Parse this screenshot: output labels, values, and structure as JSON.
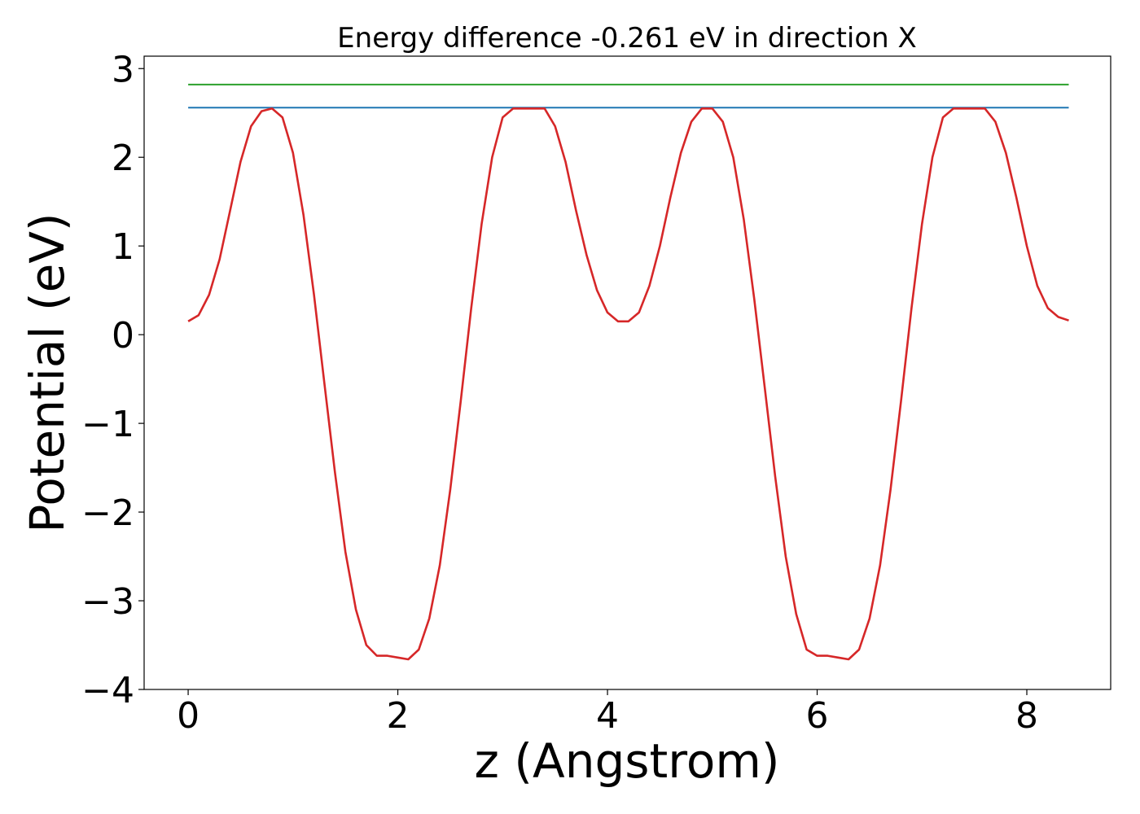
{
  "chart_data": {
    "type": "line",
    "title": "Energy difference -0.261 eV in direction X",
    "xlabel": "z (Angstrom)",
    "ylabel": "Potential (eV)",
    "xlim": [
      -0.42,
      8.8
    ],
    "ylim": [
      -4.0,
      3.14
    ],
    "x_ticks": [
      0,
      2,
      4,
      6,
      8
    ],
    "x_tick_labels": [
      "0",
      "2",
      "4",
      "6",
      "8"
    ],
    "y_ticks": [
      3,
      2,
      1,
      0,
      -1,
      -2,
      -3,
      -4
    ],
    "y_tick_labels": [
      "3",
      "2",
      "1",
      "0",
      "−1",
      "−2",
      "−3",
      "−4"
    ],
    "grid": false,
    "legend": "none",
    "series": [
      {
        "color": "#2ca02c",
        "style": "hline",
        "x": [
          0,
          8.4
        ],
        "y": [
          2.82,
          2.82
        ]
      },
      {
        "color": "#1f77b4",
        "style": "hline",
        "x": [
          0,
          8.4
        ],
        "y": [
          2.56,
          2.56
        ]
      },
      {
        "color": "#d62728",
        "style": "curve",
        "x": [
          0.0,
          0.1,
          0.2,
          0.3,
          0.4,
          0.5,
          0.6,
          0.7,
          0.8,
          0.9,
          1.0,
          1.1,
          1.2,
          1.3,
          1.4,
          1.5,
          1.6,
          1.7,
          1.8,
          1.9,
          2.0,
          2.1,
          2.2,
          2.3,
          2.4,
          2.5,
          2.6,
          2.7,
          2.8,
          2.9,
          3.0,
          3.1,
          3.2,
          3.3,
          3.4,
          3.5,
          3.6,
          3.7,
          3.8,
          3.9,
          4.0,
          4.1,
          4.2,
          4.3,
          4.4,
          4.5,
          4.6,
          4.7,
          4.8,
          4.9,
          5.0,
          5.1,
          5.2,
          5.3,
          5.4,
          5.5,
          5.6,
          5.7,
          5.8,
          5.9,
          6.0,
          6.1,
          6.2,
          6.3,
          6.4,
          6.5,
          6.6,
          6.7,
          6.8,
          6.9,
          7.0,
          7.1,
          7.2,
          7.3,
          7.4,
          7.5,
          7.6,
          7.7,
          7.8,
          7.9,
          8.0,
          8.1,
          8.2,
          8.3,
          8.4
        ],
        "y": [
          0.15,
          0.22,
          0.45,
          0.85,
          1.4,
          1.95,
          2.35,
          2.52,
          2.55,
          2.45,
          2.05,
          1.35,
          0.45,
          -0.55,
          -1.55,
          -2.45,
          -3.1,
          -3.5,
          -3.62,
          -3.62,
          -3.64,
          -3.66,
          -3.55,
          -3.2,
          -2.6,
          -1.75,
          -0.75,
          0.3,
          1.25,
          2.0,
          2.45,
          2.55,
          2.55,
          2.55,
          2.55,
          2.35,
          1.95,
          1.4,
          0.9,
          0.5,
          0.25,
          0.15,
          0.15,
          0.25,
          0.55,
          1.0,
          1.55,
          2.05,
          2.4,
          2.55,
          2.55,
          2.4,
          2.0,
          1.3,
          0.4,
          -0.6,
          -1.6,
          -2.5,
          -3.15,
          -3.55,
          -3.62,
          -3.62,
          -3.64,
          -3.66,
          -3.55,
          -3.2,
          -2.6,
          -1.75,
          -0.75,
          0.3,
          1.25,
          2.0,
          2.45,
          2.55,
          2.55,
          2.55,
          2.55,
          2.4,
          2.05,
          1.55,
          1.0,
          0.55,
          0.3,
          0.2,
          0.16
        ]
      }
    ]
  }
}
